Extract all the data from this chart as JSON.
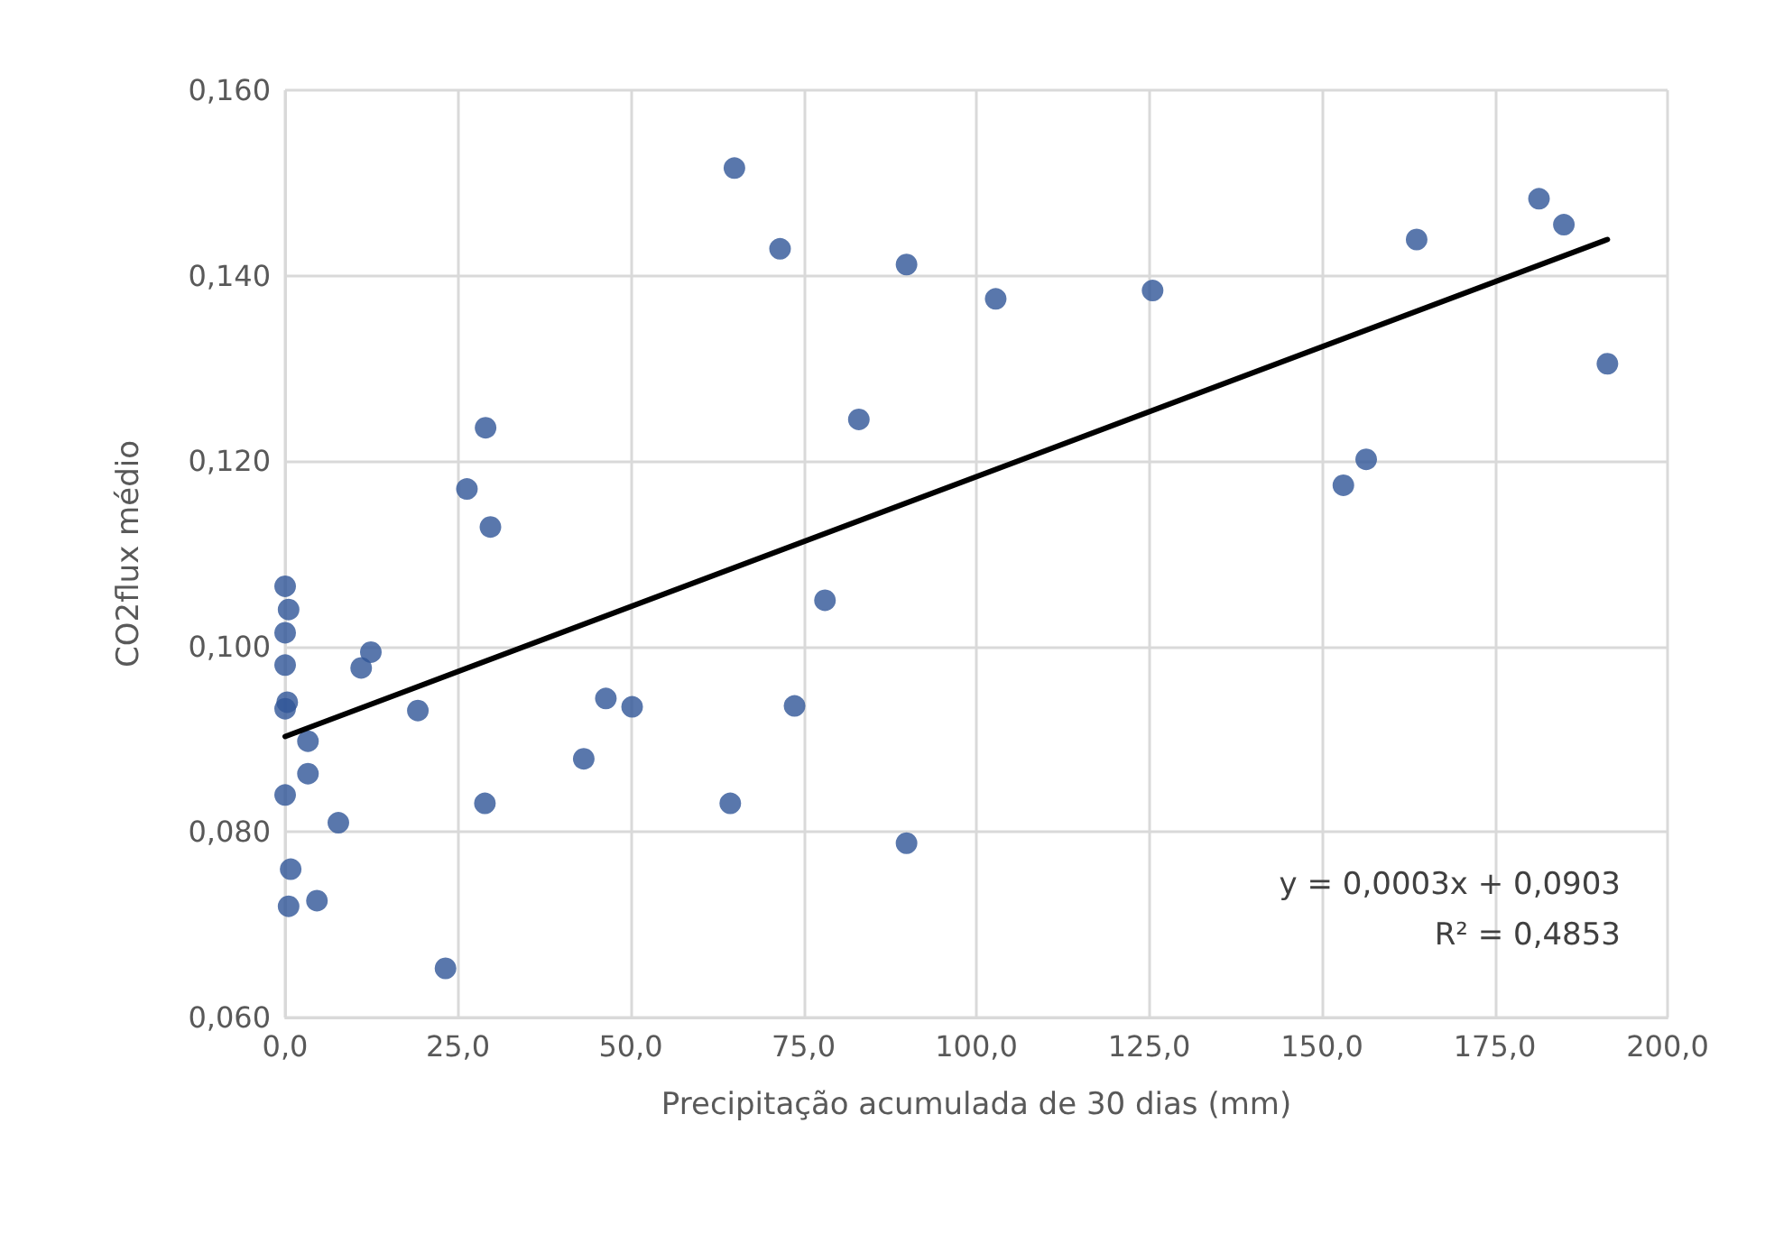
{
  "chart_data": {
    "type": "scatter",
    "xlabel": "Precipitação acumulada de 30 dias (mm)",
    "ylabel": "CO2flux médio",
    "xlim": [
      0,
      200
    ],
    "ylim": [
      0.06,
      0.16
    ],
    "xticks": [
      {
        "value": 0,
        "label": "0,0"
      },
      {
        "value": 25,
        "label": "25,0"
      },
      {
        "value": 50,
        "label": "50,0"
      },
      {
        "value": 75,
        "label": "75,0"
      },
      {
        "value": 100,
        "label": "100,0"
      },
      {
        "value": 125,
        "label": "125,0"
      },
      {
        "value": 150,
        "label": "150,0"
      },
      {
        "value": 175,
        "label": "175,0"
      },
      {
        "value": 200,
        "label": "200,0"
      }
    ],
    "yticks": [
      {
        "value": 0.06,
        "label": "0,060"
      },
      {
        "value": 0.08,
        "label": "0,080"
      },
      {
        "value": 0.1,
        "label": "0,100"
      },
      {
        "value": 0.12,
        "label": "0,120"
      },
      {
        "value": 0.14,
        "label": "0,140"
      },
      {
        "value": 0.16,
        "label": "0,160"
      }
    ],
    "grid": true,
    "marker": "circle",
    "series": [
      {
        "color": "#2f5597",
        "x": [
          0,
          0.5,
          0,
          0,
          0.3,
          0,
          12.4,
          11,
          3.3,
          3.3,
          0,
          7.7,
          0.8,
          0.5,
          4.6,
          23.2,
          19.2,
          28.9,
          43.2,
          46.4,
          50.2,
          29,
          26.3,
          29.7,
          65,
          64.4,
          71.6,
          73.7,
          78.1,
          83,
          89.9,
          89.9,
          102.8,
          125.5,
          153.1,
          156.4,
          163.7,
          181.4,
          185,
          191.3
        ],
        "values": [
          0.1065,
          0.104,
          0.1015,
          0.098,
          0.094,
          0.0933,
          0.0994,
          0.0977,
          0.0898,
          0.0863,
          0.084,
          0.081,
          0.076,
          0.072,
          0.0726,
          0.0653,
          0.0931,
          0.0831,
          0.0879,
          0.0944,
          0.0935,
          0.1236,
          0.117,
          0.1129,
          0.1516,
          0.0831,
          0.1429,
          0.0936,
          0.105,
          0.1245,
          0.1412,
          0.0788,
          0.1375,
          0.1384,
          0.1174,
          0.1202,
          0.1439,
          0.1483,
          0.1455,
          0.1305
        ]
      },
      {
        "type": "line",
        "color": "#000000",
        "marker": "none",
        "line_style": "solid",
        "x": [
          0,
          191.3
        ],
        "values": [
          0.0903,
          0.1439
        ]
      }
    ],
    "annotations": [
      "y = 0,0003x + 0,0903",
      "R² = 0,4853"
    ]
  }
}
